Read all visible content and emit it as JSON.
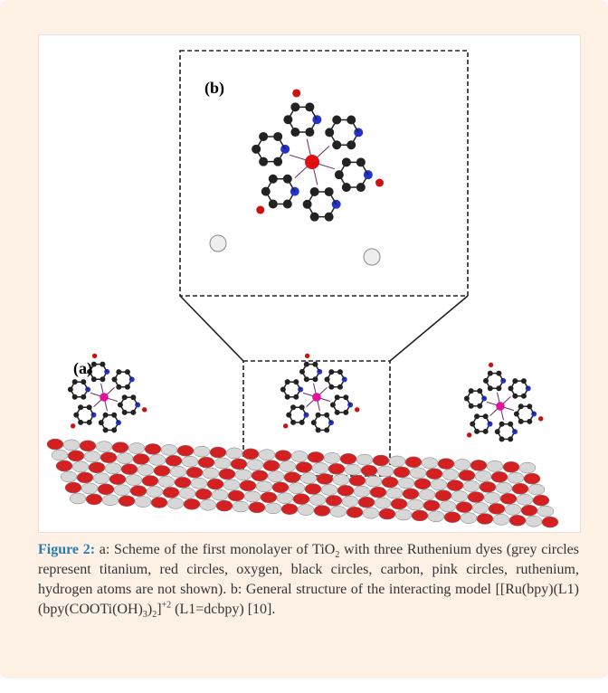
{
  "figure": {
    "panel_a_label": "(a)",
    "panel_b_label": "(b)"
  },
  "caption": {
    "label": "Figure 2:",
    "parts": [
      "a: Scheme of the first monolayer of TiO",
      "2",
      " with three Ruthenium dyes (grey circles represent titanium, red circles, oxygen, black circles, carbon, pink circles, ruthenium, hydrogen atoms are not shown). b: General structure of the interacting model [[Ru(bpy)(L1)(bpy(COOTi(OH)",
      "3",
      ")",
      "2",
      "]",
      "+2",
      " (L1=dcbpy) [10]."
    ]
  }
}
